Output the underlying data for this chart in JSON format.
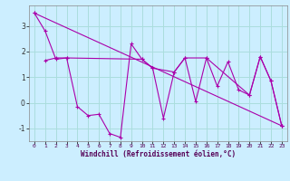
{
  "bg_color": "#cceeff",
  "grid_color": "#aadddd",
  "line_color": "#aa00aa",
  "xlabel": "Windchill (Refroidissement éolien,°C)",
  "xlim": [
    -0.5,
    23.5
  ],
  "ylim": [
    -1.5,
    3.8
  ],
  "yticks": [
    -1,
    0,
    1,
    2,
    3
  ],
  "xticks": [
    0,
    1,
    2,
    3,
    4,
    5,
    6,
    7,
    8,
    9,
    10,
    11,
    12,
    13,
    14,
    15,
    16,
    17,
    18,
    19,
    20,
    21,
    22,
    23
  ],
  "series1_x": [
    0,
    1,
    2,
    3,
    4,
    5,
    6,
    7,
    8,
    9,
    10,
    11,
    12,
    13,
    14,
    15,
    16,
    17,
    18,
    19,
    20,
    21,
    22,
    23
  ],
  "series1_y": [
    3.5,
    2.8,
    1.7,
    1.75,
    -0.15,
    -0.5,
    -0.45,
    -1.2,
    -1.35,
    2.3,
    1.7,
    1.35,
    -0.6,
    1.2,
    1.75,
    0.05,
    1.75,
    0.65,
    1.6,
    0.5,
    0.3,
    1.8,
    0.85,
    -0.9
  ],
  "series2_x": [
    1,
    2,
    3,
    10,
    11,
    13,
    14,
    16,
    20,
    21,
    22,
    23
  ],
  "series2_y": [
    1.65,
    1.75,
    1.75,
    1.7,
    1.35,
    1.2,
    1.75,
    1.75,
    0.3,
    1.8,
    0.85,
    -0.9
  ],
  "series3_x": [
    0,
    23
  ],
  "series3_y": [
    3.5,
    -0.9
  ]
}
